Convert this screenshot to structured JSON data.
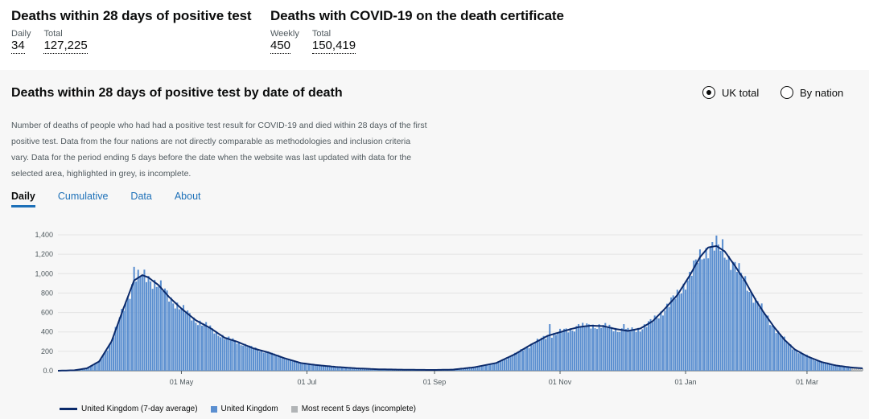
{
  "headlines": [
    {
      "title": "Deaths within 28 days of positive test",
      "metrics": [
        {
          "label": "Daily",
          "value": "34"
        },
        {
          "label": "Total",
          "value": "127,225"
        }
      ]
    },
    {
      "title": "Deaths with COVID-19 on the death certificate",
      "metrics": [
        {
          "label": "Weekly",
          "value": "450"
        },
        {
          "label": "Total",
          "value": "150,419"
        }
      ]
    }
  ],
  "card": {
    "title": "Deaths within 28 days of positive test by date of death",
    "radios": [
      {
        "label": "UK total",
        "checked": true
      },
      {
        "label": "By nation",
        "checked": false
      }
    ],
    "description": "Number of deaths of people who had had a positive test result for COVID-19 and died within 28 days of the first positive test. Data from the four nations are not directly comparable as methodologies and inclusion criteria vary. Data for the period ending 5 days before the date when the website was last updated with data for the selected area, highlighted in grey, is incomplete.",
    "tabs": [
      {
        "label": "Daily",
        "active": true
      },
      {
        "label": "Cumulative",
        "active": false
      },
      {
        "label": "Data",
        "active": false
      },
      {
        "label": "About",
        "active": false
      }
    ],
    "legend": [
      {
        "label": "United Kingdom (7-day average)",
        "kind": "line",
        "color": "#0b2a6b"
      },
      {
        "label": "United Kingdom",
        "kind": "bar",
        "color": "#5b8fd0"
      },
      {
        "label": "Most recent 5 days (incomplete)",
        "kind": "bar",
        "color": "#b1b4b6"
      }
    ]
  },
  "chart_data": {
    "type": "bar",
    "title": "Deaths within 28 days of positive test by date of death",
    "xlabel": "",
    "ylabel": "",
    "ylim": [
      0,
      1400
    ],
    "y_ticks": [
      0,
      200,
      400,
      600,
      800,
      1000,
      1200,
      1400
    ],
    "y_tick_labels": [
      "0.0",
      "200",
      "400",
      "600",
      "800",
      "1,000",
      "1,200",
      "1,400"
    ],
    "x_range": [
      "2020-03-02",
      "2021-03-28"
    ],
    "x_ticks": [
      {
        "date": "2020-05-01",
        "label": "01 May"
      },
      {
        "date": "2020-07-01",
        "label": "01 Jul"
      },
      {
        "date": "2020-09-01",
        "label": "01 Sep"
      },
      {
        "date": "2020-11-01",
        "label": "01 Nov"
      },
      {
        "date": "2021-01-01",
        "label": "01 Jan"
      },
      {
        "date": "2021-03-01",
        "label": "01 Mar"
      }
    ],
    "grid": true,
    "series": [
      {
        "name": "United Kingdom (7-day average)",
        "kind": "line",
        "color": "#0b2a6b",
        "points": [
          [
            "2020-03-02",
            0
          ],
          [
            "2020-03-10",
            5
          ],
          [
            "2020-03-16",
            25
          ],
          [
            "2020-03-22",
            95
          ],
          [
            "2020-03-28",
            300
          ],
          [
            "2020-04-03",
            650
          ],
          [
            "2020-04-08",
            930
          ],
          [
            "2020-04-12",
            985
          ],
          [
            "2020-04-15",
            960
          ],
          [
            "2020-04-20",
            880
          ],
          [
            "2020-04-25",
            760
          ],
          [
            "2020-05-01",
            640
          ],
          [
            "2020-05-08",
            520
          ],
          [
            "2020-05-15",
            440
          ],
          [
            "2020-05-22",
            340
          ],
          [
            "2020-05-28",
            300
          ],
          [
            "2020-06-05",
            230
          ],
          [
            "2020-06-12",
            190
          ],
          [
            "2020-06-20",
            130
          ],
          [
            "2020-06-28",
            80
          ],
          [
            "2020-07-05",
            60
          ],
          [
            "2020-07-15",
            40
          ],
          [
            "2020-07-25",
            25
          ],
          [
            "2020-08-05",
            15
          ],
          [
            "2020-08-20",
            10
          ],
          [
            "2020-09-01",
            8
          ],
          [
            "2020-09-10",
            12
          ],
          [
            "2020-09-20",
            35
          ],
          [
            "2020-10-01",
            80
          ],
          [
            "2020-10-10",
            170
          ],
          [
            "2020-10-18",
            270
          ],
          [
            "2020-10-26",
            360
          ],
          [
            "2020-11-03",
            410
          ],
          [
            "2020-11-10",
            450
          ],
          [
            "2020-11-16",
            465
          ],
          [
            "2020-11-22",
            460
          ],
          [
            "2020-11-28",
            430
          ],
          [
            "2020-12-04",
            410
          ],
          [
            "2020-12-10",
            435
          ],
          [
            "2020-12-16",
            510
          ],
          [
            "2020-12-22",
            640
          ],
          [
            "2020-12-28",
            780
          ],
          [
            "2021-01-03",
            980
          ],
          [
            "2021-01-08",
            1170
          ],
          [
            "2021-01-12",
            1270
          ],
          [
            "2021-01-16",
            1285
          ],
          [
            "2021-01-20",
            1230
          ],
          [
            "2021-01-25",
            1080
          ],
          [
            "2021-01-30",
            920
          ],
          [
            "2021-02-04",
            730
          ],
          [
            "2021-02-08",
            600
          ],
          [
            "2021-02-13",
            450
          ],
          [
            "2021-02-18",
            320
          ],
          [
            "2021-02-23",
            220
          ],
          [
            "2021-03-01",
            150
          ],
          [
            "2021-03-08",
            90
          ],
          [
            "2021-03-15",
            55
          ],
          [
            "2021-03-22",
            35
          ],
          [
            "2021-03-28",
            25
          ]
        ]
      },
      {
        "name": "United Kingdom",
        "kind": "bar",
        "color": "#5b8fd0",
        "note": "daily values follow the 7-day average with day-to-day noise",
        "spikes": [
          [
            "2020-04-08",
            1070
          ],
          [
            "2020-04-12",
            990
          ],
          [
            "2020-10-27",
            480
          ],
          [
            "2020-11-10",
            480
          ],
          [
            "2020-12-02",
            480
          ],
          [
            "2021-01-19",
            1355
          ],
          [
            "2021-01-17",
            1300
          ],
          [
            "2021-01-25",
            1120
          ]
        ],
        "incomplete_from": "2021-03-23",
        "incomplete_color": "#b1b4b6"
      }
    ]
  }
}
